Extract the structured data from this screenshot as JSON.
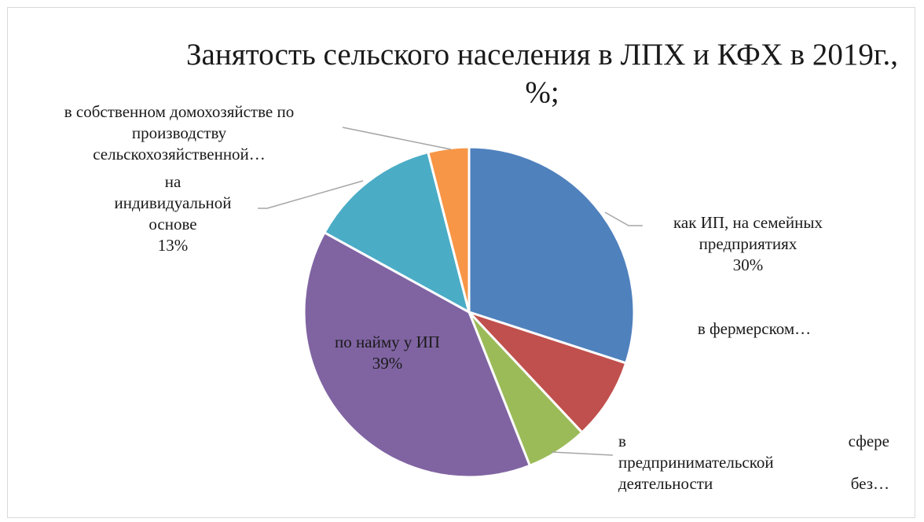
{
  "chart_data": {
    "type": "pie",
    "title": "Занятость сельского населения в ЛПХ и КФХ в 2019г.,",
    "title_line2": "%;",
    "legend": "none",
    "slices": [
      {
        "name": "как ИП, на семейных предприятиях",
        "value": 30,
        "color": "#4f81bd"
      },
      {
        "name": "в фермерском…",
        "value": 8,
        "color": "#c0504d"
      },
      {
        "name": "в сфере предпринимательской деятельности без…",
        "value": 6,
        "color": "#9bbb59"
      },
      {
        "name": "по найму у ИП",
        "value": 39,
        "color": "#8064a2"
      },
      {
        "name": "на индивидуальной основе",
        "value": 13,
        "color": "#4bacc6"
      },
      {
        "name": "в собственном домохозяйстве по производству сельскохозяйственной…",
        "value": 4,
        "color": "#f79646"
      }
    ]
  },
  "labels": {
    "s0": {
      "l1": "как ИП, на семейных",
      "l2": "предприятиях",
      "pct": "30%"
    },
    "s1": {
      "l1": "в фермерском…"
    },
    "s2": {
      "l1a": "в",
      "l1b": "сфере",
      "l2": "предпринимательской",
      "l3a": "деятельности",
      "l3b": "без…"
    },
    "s3": {
      "l1": "по найму у ИП",
      "pct": "39%"
    },
    "s4": {
      "l1": "на",
      "l2": "индивидуальной",
      "l3": "основе",
      "pct": "13%"
    },
    "s5": {
      "l1": "в собственном домохозяйстве по",
      "l2": "производству",
      "l3": "сельскохозяйственной…"
    }
  }
}
